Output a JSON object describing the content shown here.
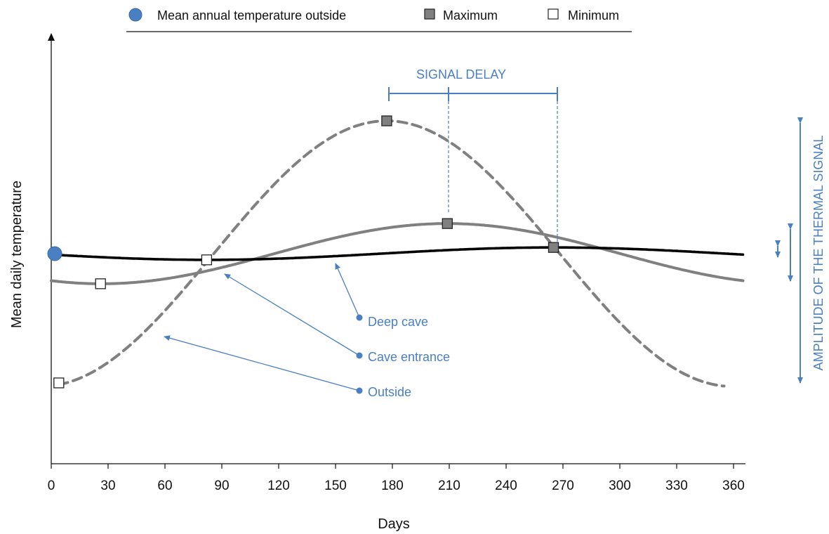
{
  "chart_data": {
    "type": "line",
    "xlabel": "Days",
    "ylabel": "Mean daily temperature",
    "xlim": [
      0,
      365
    ],
    "ylim": [
      -10,
      12
    ],
    "x_ticks": [
      0,
      30,
      60,
      90,
      120,
      150,
      180,
      210,
      240,
      270,
      300,
      330,
      360
    ],
    "grid": false,
    "legend_position": "top",
    "legend": [
      {
        "label": "Mean annual temperature outside",
        "marker": "circle",
        "color": "#4a7fc1"
      },
      {
        "label": "Maximum",
        "marker": "square",
        "color": "#808080"
      },
      {
        "label": "Minimum",
        "marker": "square",
        "color": "#ffffff"
      }
    ],
    "mean_annual_temperature": 0,
    "series": [
      {
        "name": "Outside",
        "style": "dashed",
        "color": "#808080",
        "amplitude": 7.5,
        "day_of_max": 177,
        "x_range": [
          4,
          355
        ]
      },
      {
        "name": "Cave entrance",
        "style": "solid",
        "color": "#808080",
        "amplitude": 1.7,
        "day_of_max": 209,
        "x_range": [
          0,
          365
        ]
      },
      {
        "name": "Deep cave",
        "style": "solid",
        "color": "#000000",
        "amplitude": 0.35,
        "day_of_max": 265,
        "x_range": [
          0,
          365
        ]
      }
    ],
    "maxima": [
      {
        "series": "Outside",
        "x": 177,
        "y": 7.5
      },
      {
        "series": "Cave entrance",
        "x": 209,
        "y": 1.7
      },
      {
        "series": "Deep cave",
        "x": 265,
        "y": 0.35
      }
    ],
    "minima": [
      {
        "series": "Outside",
        "x": 4,
        "y": -7.3
      },
      {
        "series": "Cave entrance",
        "x": 26,
        "y": -1.7
      },
      {
        "series": "Deep cave",
        "x": 82,
        "y": -0.35
      }
    ],
    "mean_marker": {
      "x": 0,
      "y": 0
    },
    "annotations": {
      "signal_delay": "SIGNAL DELAY",
      "amplitude": "AMPLITUDE OF THE THERMAL SIGNAL",
      "labels": [
        "Deep cave",
        "Cave entrance",
        "Outside"
      ]
    }
  },
  "colors": {
    "accent_blue": "#4a7fc1",
    "gray": "#808080",
    "black": "#000000"
  }
}
